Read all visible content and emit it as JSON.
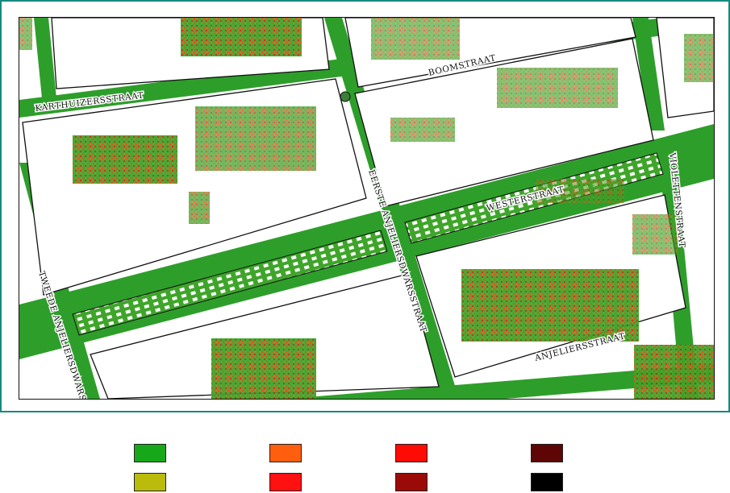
{
  "streets": {
    "karthuizersstraat": "KARTHUIZERSSTRAAT",
    "boomstraat": "BOOMSTRAAT",
    "westerstraat": "WESTERSTRAAT",
    "eerste_anjeliersdwarsstraat": "EERSTE ANJELIERSDWARSSTRAAT",
    "tweede_anjeliersdwarsstraat": "TWEEDE ANJELIERSDWARS",
    "violettenstraat": "VIOLETTENSTRAAT",
    "anjeliersstraat": "ANJELIERSSTRAAT"
  },
  "legend": [
    {
      "color": "#17a81a"
    },
    {
      "color": "#ff5e0e"
    },
    {
      "color": "#ff0b06"
    },
    {
      "color": "#5e0606"
    },
    {
      "color": "#bbbb0b"
    },
    {
      "color": "#ff1111"
    },
    {
      "color": "#9a0b08"
    },
    {
      "color": "#000000"
    }
  ]
}
